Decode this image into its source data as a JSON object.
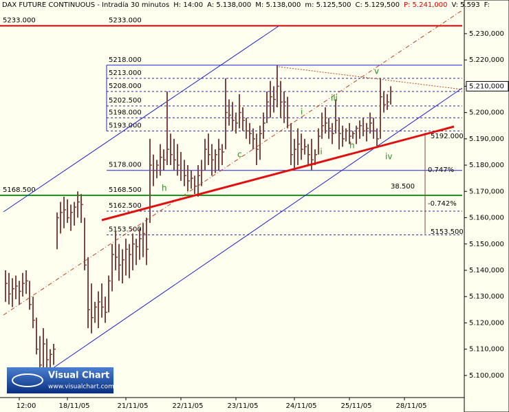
{
  "chart_data": {
    "type": "ohlc",
    "header": [
      {
        "text": "DAX FUTURE CONTINUOUS - Intradía 30 minutos",
        "color": "#000000"
      },
      {
        "text": "H: 14:00",
        "color": "#000000"
      },
      {
        "text": "A: 5.138,000",
        "color": "#000000"
      },
      {
        "text": "M: 5.138,000",
        "color": "#000000"
      },
      {
        "text": "m: 5.125,500",
        "color": "#000000"
      },
      {
        "text": "C: 5.129,500",
        "color": "#000000"
      },
      {
        "text": "P: 5.241,000",
        "color": "#d00000"
      },
      {
        "text": "V: 5.593",
        "color": "#000000"
      },
      {
        "text": "F:",
        "color": "#000000"
      }
    ],
    "categories": [
      null,
      null,
      null,
      null,
      null,
      null,
      "12:00",
      null,
      null,
      null,
      null,
      null,
      null,
      null,
      null,
      null,
      null,
      null,
      null,
      null,
      "18/11/05",
      null,
      null,
      null,
      null,
      null,
      null,
      null,
      null,
      null,
      null,
      null,
      null,
      null,
      null,
      null,
      null,
      "21/11/05",
      null,
      null,
      null,
      null,
      null,
      null,
      null,
      null,
      null,
      null,
      null,
      null,
      null,
      null,
      null,
      "22/11/05",
      null,
      null,
      null,
      null,
      null,
      null,
      null,
      null,
      null,
      null,
      null,
      null,
      null,
      null,
      null,
      "23/11/05",
      null,
      null,
      null,
      null,
      null,
      null,
      null,
      null,
      null,
      null,
      null,
      null,
      null,
      null,
      null,
      null,
      "24/11/05",
      null,
      null,
      null,
      null,
      null,
      null,
      null,
      null,
      null,
      null,
      null,
      null,
      null,
      null,
      null,
      "25/11/05",
      null,
      null,
      null,
      null,
      null,
      null,
      null,
      null,
      null,
      null,
      null,
      null,
      null,
      null,
      null,
      "28/11/05",
      null
    ],
    "high": [
      5140,
      5139,
      5137,
      5138,
      5136,
      5139,
      5140,
      5136,
      5130,
      5122,
      5115,
      5118,
      5114,
      5110,
      5112,
      5162,
      5166,
      5168,
      5167,
      5165,
      5166,
      5170,
      5169,
      5160,
      5145,
      5135,
      5128,
      5132,
      5135,
      5130,
      5138,
      5150,
      5155,
      5150,
      5148,
      5152,
      5150,
      5154,
      5152,
      5156,
      5158,
      5160,
      5190,
      5184,
      5182,
      5188,
      5186,
      5208,
      5192,
      5190,
      5188,
      5185,
      5182,
      5180,
      5178,
      5176,
      5180,
      5182,
      5190,
      5192,
      5188,
      5186,
      5190,
      5188,
      5213,
      5205,
      5204,
      5200,
      5207,
      5202,
      5198,
      5196,
      5194,
      5192,
      5195,
      5200,
      5208,
      5212,
      5210,
      5218,
      5212,
      5208,
      5206,
      5196,
      5190,
      5194,
      5192,
      5190,
      5188,
      5190,
      5186,
      5194,
      5200,
      5202,
      5198,
      5196,
      5205,
      5198,
      5195,
      5194,
      5196,
      5193,
      5195,
      5197,
      5198,
      5196,
      5200,
      5198,
      5194,
      5213,
      5208,
      5207,
      5210,
      null,
      null,
      null,
      null,
      null,
      null,
      null
    ],
    "low": [
      5128,
      5127,
      5126,
      5129,
      5127,
      5130,
      5131,
      5125,
      5118,
      5108,
      5100,
      5102,
      5100,
      5103,
      5104,
      5148,
      5154,
      5156,
      5158,
      5155,
      5157,
      5160,
      5158,
      5140,
      5118,
      5116,
      5120,
      5118,
      5122,
      5120,
      5124,
      5132,
      5140,
      5136,
      5135,
      5138,
      5137,
      5140,
      5142,
      5144,
      5145,
      5142,
      5158,
      5172,
      5175,
      5176,
      5178,
      5180,
      5180,
      5178,
      5176,
      5174,
      5172,
      5170,
      5171,
      5169,
      5168,
      5172,
      5178,
      5180,
      5176,
      5177,
      5178,
      5180,
      5186,
      5195,
      5193,
      5192,
      5194,
      5193,
      5190,
      5188,
      5186,
      5180,
      5182,
      5190,
      5196,
      5198,
      5200,
      5202,
      5198,
      5196,
      5194,
      5180,
      5178,
      5180,
      5182,
      5184,
      5180,
      5178,
      5180,
      5184,
      5190,
      5192,
      5190,
      5188,
      5192,
      5186,
      5187,
      5189,
      5188,
      5190,
      5188,
      5190,
      5191,
      5189,
      5192,
      5190,
      5187,
      5190,
      5200,
      5201,
      5203,
      null,
      null,
      null,
      null,
      null,
      null,
      null
    ],
    "close": [
      5135,
      5131,
      5133,
      5134,
      5132,
      5135,
      5136,
      5127,
      5121,
      5110,
      5104,
      5112,
      5106,
      5108,
      5110,
      5160,
      5162,
      5163,
      5160,
      5162,
      5164,
      5166,
      5165,
      5142,
      5125,
      5122,
      5126,
      5128,
      5126,
      5124,
      5136,
      5146,
      5145,
      5142,
      5144,
      5148,
      5146,
      5150,
      5149,
      5152,
      5154,
      5148,
      5180,
      5178,
      5180,
      5183,
      5182,
      5186,
      5184,
      5182,
      5180,
      5178,
      5176,
      5174,
      5175,
      5172,
      5176,
      5178,
      5186,
      5184,
      5182,
      5184,
      5186,
      5185,
      5200,
      5199,
      5197,
      5196,
      5200,
      5197,
      5193,
      5192,
      5190,
      5186,
      5192,
      5196,
      5204,
      5206,
      5205,
      5210,
      5204,
      5204,
      5198,
      5184,
      5186,
      5188,
      5186,
      5187,
      5184,
      5182,
      5184,
      5191,
      5195,
      5196,
      5194,
      5192,
      5197,
      5192,
      5190,
      5193,
      5191,
      5192,
      5194,
      5195,
      5193,
      5194,
      5196,
      5193,
      5190,
      5206,
      5203,
      5204,
      5208,
      null,
      null,
      null,
      null,
      null,
      null,
      null
    ],
    "color": "#7a4646",
    "ylim": [
      5091.6,
      5242.8
    ],
    "yticks": [
      {
        "value": 5100,
        "label": "5.100,000"
      },
      {
        "value": 5110,
        "label": "5.110,000"
      },
      {
        "value": 5120,
        "label": "5.120,000"
      },
      {
        "value": 5130,
        "label": "5.130,000"
      },
      {
        "value": 5140,
        "label": "5.140,000"
      },
      {
        "value": 5150,
        "label": "5.150,000"
      },
      {
        "value": 5160,
        "label": "5.160,000"
      },
      {
        "value": 5170,
        "label": "5.170,000"
      },
      {
        "value": 5180,
        "label": "5.180,000"
      },
      {
        "value": 5190,
        "label": "5.190,000"
      },
      {
        "value": 5200,
        "label": "5.200,000"
      },
      {
        "value": 5210,
        "label": "5.210,000"
      },
      {
        "value": 5220,
        "label": "5.220,000"
      },
      {
        "value": 5230,
        "label": "5.230,000"
      }
    ],
    "last_price": {
      "value": 5210,
      "label": "5.210,000"
    },
    "levels": [
      {
        "value": 5233,
        "label": "5233.000",
        "color": "#d00000"
      },
      {
        "value": 5218,
        "label": "5218.000",
        "color": "#1f1fd0"
      },
      {
        "value": 5213,
        "label": "5213.000",
        "color": "#1f1fd0"
      },
      {
        "value": 5208,
        "label": "5208.000",
        "color": "#1f1fd0"
      },
      {
        "value": 5202.5,
        "label": "5202.500",
        "color": "#1f1fd0"
      },
      {
        "value": 5198,
        "label": "5198.000",
        "color": "#1f1fd0"
      },
      {
        "value": 5193,
        "label": "5193.000",
        "color": "#1f1fd0"
      },
      {
        "value": 5178,
        "label": "5178.000",
        "color": "#1f1fd0"
      },
      {
        "value": 5168.5,
        "label": "5168.500",
        "color": "#1a9a1a"
      },
      {
        "value": 5162.5,
        "label": "5162.500",
        "color": "#1f1fd0"
      },
      {
        "value": 5153.5,
        "label": "5153.500",
        "color": "#1f1fd0"
      }
    ],
    "annotations": [
      "5192.000",
      "0.747%",
      "-0.742%",
      "38.500",
      "5153.500"
    ],
    "wave_labels": [
      "v",
      "iii",
      "i",
      "ii",
      "c",
      "h",
      "h",
      "iv"
    ],
    "logo": {
      "title": "Visual Chart",
      "url": "www.visualchart.com"
    }
  }
}
